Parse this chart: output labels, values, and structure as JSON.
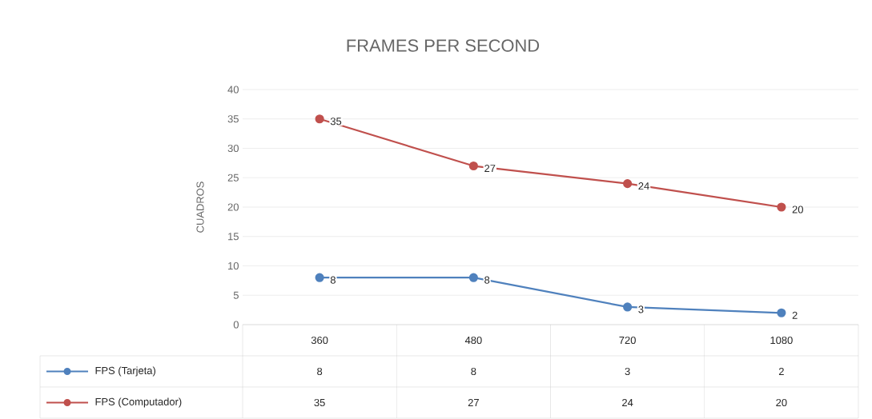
{
  "chart_data": {
    "type": "line",
    "title": "FRAMES PER SECOND",
    "ylabel": "CUADROS",
    "categories": [
      "360",
      "480",
      "720",
      "1080"
    ],
    "series": [
      {
        "name": "FPS (Tarjeta)",
        "color": "#4f81bd",
        "values": [
          8,
          8,
          3,
          2
        ],
        "value_labels": [
          "8",
          "8",
          "3",
          "2"
        ]
      },
      {
        "name": "FPS (Computador)",
        "color": "#c0504d",
        "values": [
          35,
          27,
          24,
          20
        ],
        "value_labels": [
          "35",
          "27",
          "24",
          "20"
        ]
      }
    ],
    "ylim": [
      0,
      40
    ],
    "yticks": [
      0,
      5,
      10,
      15,
      20,
      25,
      30,
      35,
      40
    ],
    "annotations": [
      "8",
      "8",
      "3",
      "2",
      "35",
      "27",
      "24",
      "20"
    ],
    "grid": "y",
    "legend": "bottom",
    "marker": "circle",
    "line_style": "solid"
  }
}
